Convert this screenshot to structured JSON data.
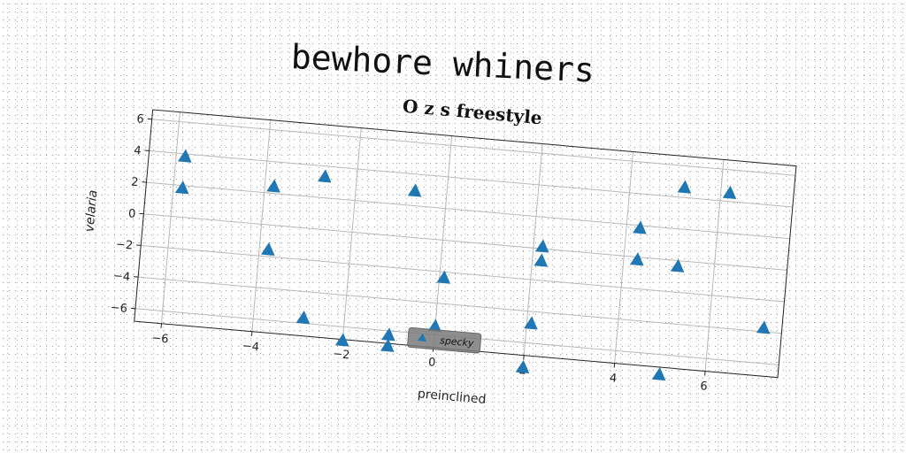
{
  "figure": {
    "title": "bewhore whiners"
  },
  "chart_data": {
    "type": "scatter",
    "title": "O z s freestyle",
    "xlabel": "preinclined",
    "ylabel": "velaria",
    "xlim": [
      -6.6,
      7.6
    ],
    "ylim": [
      -6.8,
      6.6
    ],
    "xticks": [
      -6,
      -4,
      -2,
      0,
      2,
      4,
      6
    ],
    "yticks": [
      -6,
      -4,
      -2,
      0,
      2,
      4,
      6
    ],
    "xtick_labels": [
      "−6",
      "−4",
      "−2",
      "0",
      "2",
      "4",
      "6"
    ],
    "ytick_labels": [
      "−6",
      "−4",
      "−2",
      "0",
      "2",
      "4",
      "6"
    ],
    "grid": true,
    "legend_position": "lower-center",
    "marker": "triangle",
    "color": "#1f77b4",
    "series": [
      {
        "name": "specky",
        "points": [
          [
            -5.8,
            3.8
          ],
          [
            -5.8,
            1.8
          ],
          [
            -3.8,
            2.4
          ],
          [
            -3.8,
            -1.6
          ],
          [
            -2.7,
            3.3
          ],
          [
            -0.7,
            2.9
          ],
          [
            -2.9,
            -5.7
          ],
          [
            -2.0,
            -6.9
          ],
          [
            -1.0,
            -6.3
          ],
          [
            -1.0,
            -7.0
          ],
          [
            0.1,
            -2.4
          ],
          [
            0.0,
            -5.5
          ],
          [
            2.2,
            0.1
          ],
          [
            2.2,
            -0.8
          ],
          [
            2.1,
            -4.8
          ],
          [
            2.0,
            -7.6
          ],
          [
            4.3,
            1.8
          ],
          [
            4.3,
            -0.2
          ],
          [
            5.2,
            -0.4
          ],
          [
            5.2,
            4.6
          ],
          [
            6.2,
            4.5
          ],
          [
            5.0,
            -7.3
          ],
          [
            7.2,
            -3.8
          ]
        ]
      }
    ]
  }
}
